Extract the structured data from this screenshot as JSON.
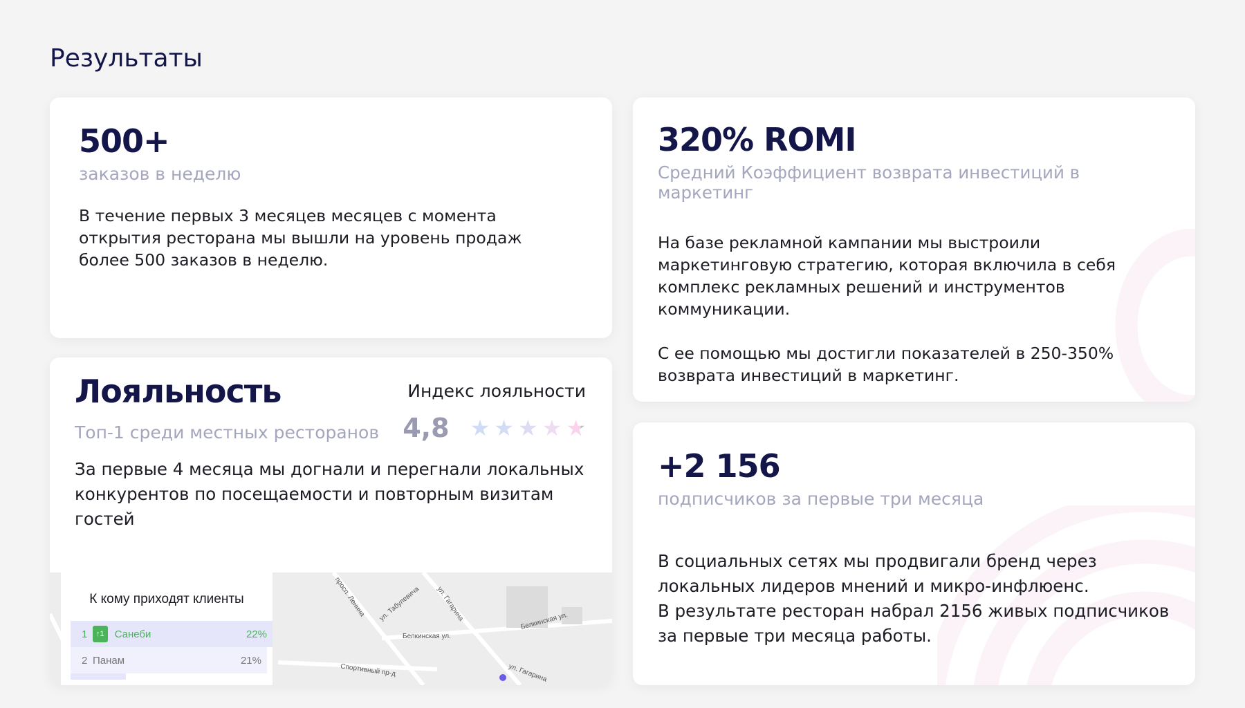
{
  "title": "Результаты",
  "orders": {
    "value": "500+",
    "subtitle": "заказов в неделю",
    "text": "В течение первых 3 месяцев месяцев с момента открытия ресторана мы вышли на уровень продаж более 500 заказов в неделю."
  },
  "romi": {
    "value": "320% ROMI",
    "subtitle": "Средний Коэффициент возврата инвестиций в маркетинг",
    "text1": "На базе рекламной кампании мы выстроили маркетинговую стратегию, которая включила в себя комплекс рекламных решений и инструментов коммуникации.",
    "text2": "С ее помощью мы достигли показателей в 250-350% возврата инвестиций в маркетинг."
  },
  "loyalty": {
    "value": "Лояльность",
    "subtitle": "Топ-1 среди местных ресторанов",
    "index_label": "Индекс лояльности",
    "index_value": "4,8",
    "rating": 4.8,
    "text": "За первые 4 месяца мы догнали и перегнали локальных конкурентов по посещаемости и повторным визитам гостей"
  },
  "map": {
    "panel_title": "К кому приходят клиенты",
    "rows": [
      {
        "rank": "1",
        "badge": "↑1",
        "name": "Санеби",
        "share": "22%"
      },
      {
        "rank": "2",
        "name": "Панам",
        "share": "21%"
      }
    ],
    "streets": [
      "просп. Ленина",
      "ул. Табулевича",
      "ул. Гагарина",
      "Белкинская ул.",
      "Белкинская ул.",
      "Спортивный пр-д",
      "ул. Гагарина"
    ]
  },
  "subscribers": {
    "value": "+2 156",
    "subtitle": "подписчиков за первые три месяца",
    "text1": "В социальных сетях мы продвигали бренд через локальных лидеров мнений и микро-инфлюенс.",
    "text2": "В результате ресторан набрал 2156 живых подписчиков за первые три месяца работы."
  },
  "colors": {
    "heading": "#14164a",
    "muted": "#a4a6bd",
    "accent_green": "#4cb35a",
    "accent_purple": "#6a5ae8"
  }
}
